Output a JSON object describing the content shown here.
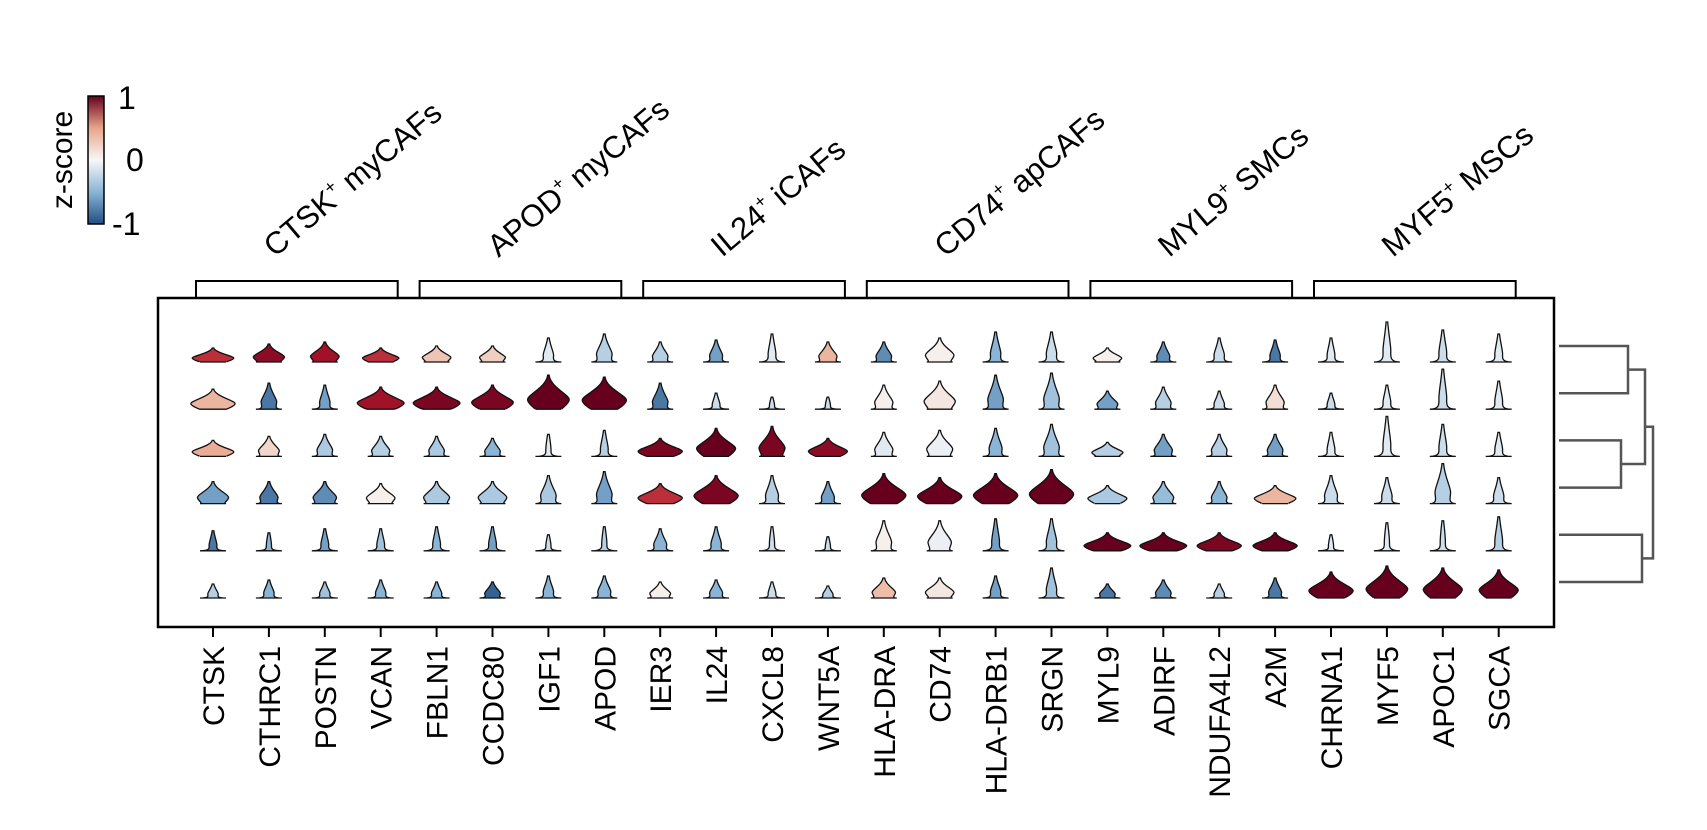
{
  "chart_data": {
    "type": "violin",
    "colorbar": {
      "label": "z-score",
      "ticks": [
        "1",
        "0",
        "-1"
      ],
      "range": [
        -1,
        1
      ],
      "colors": {
        "low": "#1f4e82",
        "mid": "#f7f7f7",
        "high": "#67001f"
      }
    },
    "groups": [
      {
        "label": "CTSK",
        "sup": "+",
        "rest": " myCAFs"
      },
      {
        "label": "APOD",
        "sup": "+",
        "rest": " myCAFs"
      },
      {
        "label": "IL24",
        "sup": "+",
        "rest": " iCAFs"
      },
      {
        "label": "CD74",
        "sup": "+",
        "rest": " apCAFs"
      },
      {
        "label": "MYL9",
        "sup": "+",
        "rest": " SMCs"
      },
      {
        "label": "MYF5",
        "sup": "+",
        "rest": " MSCs"
      }
    ],
    "genes": [
      "CTSK",
      "CTHRC1",
      "POSTN",
      "VCAN",
      "FBLN1",
      "CCDC80",
      "IGF1",
      "APOD",
      "IER3",
      "IL24",
      "CXCL8",
      "WNT5A",
      "HLA-DRA",
      "CD74",
      "HLA-DRB1",
      "SRGN",
      "MYL9",
      "ADIRF",
      "NDUFA4L2",
      "A2M",
      "CHRNA1",
      "MYF5",
      "APOC1",
      "SGCA"
    ],
    "zscore": [
      [
        0.75,
        0.9,
        0.85,
        0.75,
        0.3,
        0.25,
        -0.1,
        -0.3,
        -0.3,
        -0.6,
        -0.1,
        0.4,
        -0.7,
        0.05,
        -0.5,
        -0.2,
        0.05,
        -0.7,
        -0.2,
        -0.8,
        -0.1,
        -0.1,
        -0.2,
        -0.1
      ],
      [
        0.4,
        -0.8,
        -0.6,
        0.85,
        0.95,
        0.95,
        1.0,
        1.0,
        -0.8,
        -0.2,
        -0.2,
        -0.2,
        0.05,
        0.1,
        -0.6,
        -0.4,
        -0.6,
        -0.3,
        -0.2,
        0.15,
        -0.2,
        -0.1,
        -0.2,
        -0.1
      ],
      [
        0.45,
        0.2,
        -0.35,
        -0.3,
        -0.35,
        -0.5,
        -0.1,
        -0.3,
        0.95,
        1.0,
        0.95,
        0.9,
        -0.1,
        -0.05,
        -0.5,
        -0.4,
        -0.3,
        -0.6,
        -0.3,
        -0.6,
        -0.1,
        -0.1,
        -0.2,
        -0.1
      ],
      [
        -0.6,
        -0.8,
        -0.7,
        0.05,
        -0.35,
        -0.35,
        -0.35,
        -0.6,
        0.75,
        0.95,
        -0.3,
        -0.6,
        1.0,
        1.0,
        1.0,
        1.0,
        -0.35,
        -0.45,
        -0.5,
        0.4,
        -0.2,
        -0.2,
        -0.3,
        -0.2
      ],
      [
        -0.8,
        -0.5,
        -0.6,
        -0.4,
        -0.5,
        -0.6,
        -0.2,
        -0.3,
        -0.5,
        -0.5,
        -0.2,
        -0.2,
        0.05,
        -0.05,
        -0.6,
        -0.4,
        1.0,
        1.0,
        0.95,
        1.0,
        -0.1,
        -0.1,
        -0.2,
        -0.3
      ],
      [
        -0.3,
        -0.5,
        -0.4,
        -0.5,
        -0.5,
        -0.9,
        -0.5,
        -0.5,
        0.05,
        -0.5,
        -0.2,
        -0.3,
        0.35,
        0.1,
        -0.6,
        -0.4,
        -0.8,
        -0.7,
        -0.3,
        -0.8,
        1.0,
        1.0,
        1.0,
        1.0
      ]
    ],
    "violin_width": [
      [
        0.8,
        0.6,
        0.55,
        0.7,
        0.55,
        0.5,
        0.2,
        0.3,
        0.3,
        0.25,
        0.15,
        0.35,
        0.3,
        0.55,
        0.2,
        0.2,
        0.55,
        0.25,
        0.2,
        0.2,
        0.15,
        0.15,
        0.15,
        0.15
      ],
      [
        0.85,
        0.3,
        0.2,
        0.9,
        0.9,
        0.8,
        0.8,
        0.85,
        0.3,
        0.15,
        0.1,
        0.1,
        0.35,
        0.6,
        0.3,
        0.3,
        0.4,
        0.3,
        0.2,
        0.35,
        0.15,
        0.15,
        0.15,
        0.15
      ],
      [
        0.8,
        0.4,
        0.3,
        0.35,
        0.3,
        0.3,
        0.1,
        0.15,
        0.85,
        0.75,
        0.5,
        0.75,
        0.35,
        0.5,
        0.25,
        0.3,
        0.6,
        0.35,
        0.3,
        0.3,
        0.15,
        0.15,
        0.15,
        0.15
      ],
      [
        0.6,
        0.35,
        0.45,
        0.55,
        0.5,
        0.55,
        0.3,
        0.3,
        0.85,
        0.85,
        0.25,
        0.25,
        0.85,
        0.85,
        0.85,
        0.85,
        0.75,
        0.4,
        0.3,
        0.8,
        0.25,
        0.2,
        0.3,
        0.2
      ],
      [
        0.15,
        0.1,
        0.15,
        0.15,
        0.15,
        0.15,
        0.1,
        0.1,
        0.25,
        0.2,
        0.1,
        0.1,
        0.3,
        0.45,
        0.15,
        0.2,
        0.9,
        0.9,
        0.85,
        0.85,
        0.1,
        0.1,
        0.1,
        0.15
      ],
      [
        0.2,
        0.2,
        0.2,
        0.2,
        0.2,
        0.3,
        0.2,
        0.25,
        0.4,
        0.25,
        0.15,
        0.2,
        0.45,
        0.55,
        0.2,
        0.2,
        0.3,
        0.3,
        0.2,
        0.25,
        0.85,
        0.8,
        0.75,
        0.75
      ]
    ],
    "violin_height": [
      [
        0.35,
        0.45,
        0.5,
        0.35,
        0.4,
        0.4,
        0.6,
        0.7,
        0.5,
        0.55,
        0.7,
        0.5,
        0.5,
        0.6,
        0.75,
        0.75,
        0.35,
        0.5,
        0.6,
        0.55,
        0.6,
        1.0,
        0.8,
        0.7
      ],
      [
        0.5,
        0.65,
        0.6,
        0.55,
        0.55,
        0.6,
        0.85,
        0.8,
        0.65,
        0.4,
        0.3,
        0.3,
        0.6,
        0.7,
        0.85,
        0.9,
        0.45,
        0.55,
        0.45,
        0.6,
        0.4,
        0.6,
        1.0,
        0.7
      ],
      [
        0.4,
        0.5,
        0.55,
        0.5,
        0.5,
        0.45,
        0.55,
        0.65,
        0.45,
        0.7,
        0.75,
        0.45,
        0.6,
        0.65,
        0.7,
        0.8,
        0.35,
        0.55,
        0.55,
        0.55,
        0.6,
        1.0,
        0.8,
        0.6
      ],
      [
        0.55,
        0.55,
        0.55,
        0.5,
        0.55,
        0.55,
        0.7,
        0.8,
        0.5,
        0.7,
        0.7,
        0.55,
        0.75,
        0.65,
        0.75,
        0.85,
        0.45,
        0.55,
        0.55,
        0.45,
        0.7,
        0.65,
        1.0,
        0.65
      ],
      [
        0.5,
        0.45,
        0.55,
        0.55,
        0.6,
        0.6,
        0.4,
        0.6,
        0.55,
        0.6,
        0.6,
        0.35,
        0.75,
        0.75,
        0.8,
        0.8,
        0.45,
        0.45,
        0.45,
        0.45,
        0.4,
        0.7,
        0.75,
        0.85
      ],
      [
        0.35,
        0.45,
        0.4,
        0.45,
        0.4,
        0.4,
        0.55,
        0.55,
        0.4,
        0.45,
        0.4,
        0.3,
        0.5,
        0.5,
        0.55,
        0.75,
        0.35,
        0.45,
        0.35,
        0.5,
        0.65,
        0.8,
        0.75,
        0.7
      ]
    ],
    "dendrogram": {
      "rows": 6,
      "links": [
        [
          0,
          1
        ],
        [
          2,
          3
        ],
        [
          4,
          5
        ],
        [
          "0-1",
          "2-3"
        ],
        [
          "01-23",
          "4-5"
        ]
      ]
    },
    "legend": "top-left colorbar",
    "grid": false
  }
}
